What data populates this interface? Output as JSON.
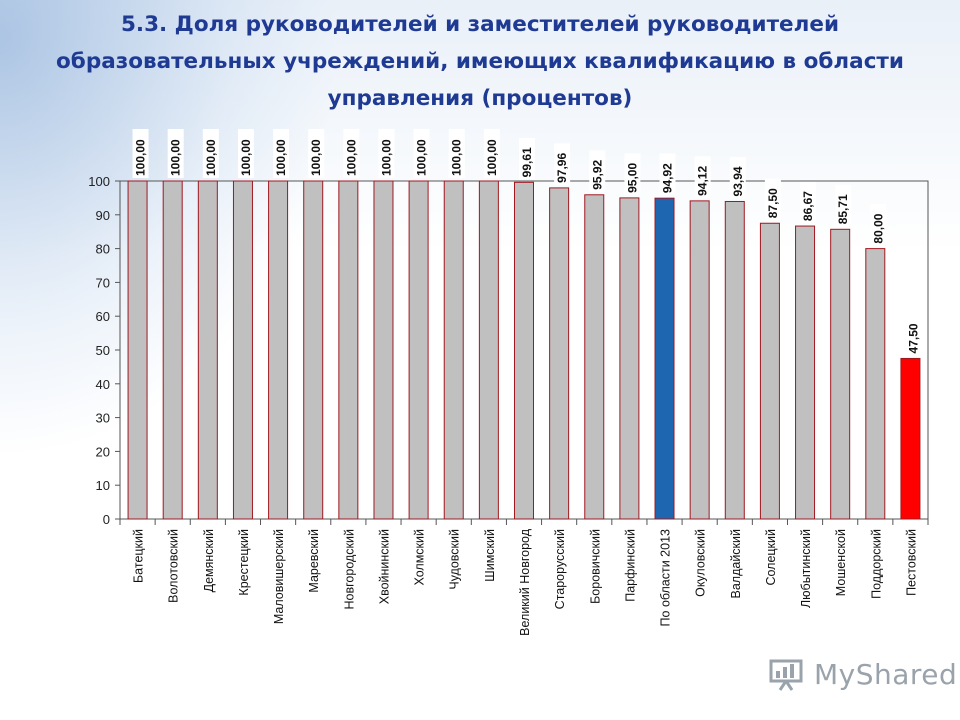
{
  "page": {
    "title": "5.3. Доля руководителей и заместителей руководителей образовательных учреждений, имеющих квалификацию в области управления (процентов)",
    "brand": "MyShared"
  },
  "colors": {
    "bar_default": "#c0c0c0",
    "bar_outline": "#a01820",
    "bar_highlight": "#1f66b0",
    "bar_min": "#ff0000",
    "title": "#1f3a93"
  },
  "chart_data": {
    "type": "bar",
    "title": "",
    "xlabel": "",
    "ylabel": "",
    "ylim": [
      0,
      100
    ],
    "yticks": [
      0,
      10,
      20,
      30,
      40,
      50,
      60,
      70,
      80,
      90,
      100
    ],
    "grid": false,
    "legend": "none",
    "categories": [
      "Батецкий",
      "Волотовский",
      "Демянский",
      "Крестецкий",
      "Маловишерский",
      "Маревский",
      "Новгородский",
      "Хвойнинский",
      "Холмский",
      "Чудовский",
      "Шимский",
      "Великий Новгород",
      "Старорусский",
      "Боровичский",
      "Парфинский",
      "По области 2013",
      "Окуловский",
      "Валдайский",
      "Солецкий",
      "Любытинский",
      "Мошенской",
      "Поддорский",
      "Пестовский"
    ],
    "values": [
      100,
      100,
      100,
      100,
      100,
      100,
      100,
      100,
      100,
      100,
      100,
      99.61,
      97.96,
      95.92,
      95.0,
      94.92,
      94.12,
      93.94,
      87.5,
      86.67,
      85.71,
      80.0,
      47.5
    ],
    "value_labels": [
      "100,00",
      "100,00",
      "100,00",
      "100,00",
      "100,00",
      "100,00",
      "100,00",
      "100,00",
      "100,00",
      "100,00",
      "100,00",
      "99,61",
      "97,96",
      "95,92",
      "95,00",
      "94,92",
      "94,12",
      "93,94",
      "87,50",
      "86,67",
      "85,71",
      "80,00",
      "47,50"
    ],
    "highlight": {
      "По области 2013": "bar_highlight",
      "Пестовский": "bar_min"
    }
  }
}
